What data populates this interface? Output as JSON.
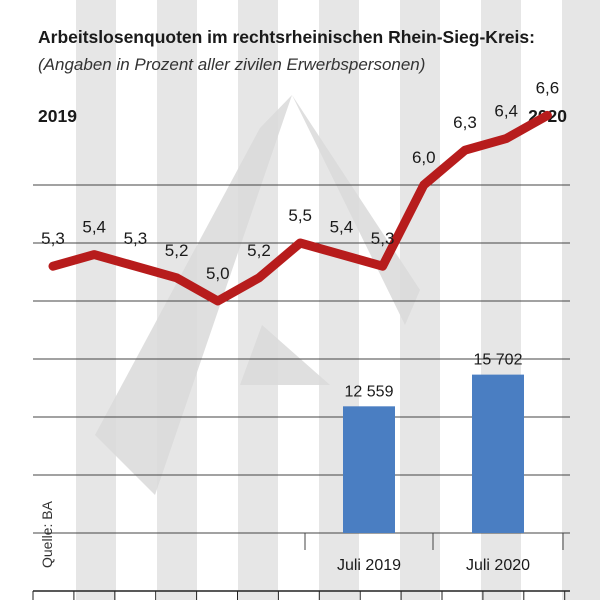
{
  "chart_data": [
    {
      "type": "line",
      "title": "Arbeitslosenquoten im rechtsrheinischen Rhein-Sieg-Kreis:",
      "subtitle": "(Angaben in Prozent aller zivilen Erwerbspersonen)",
      "year_start": "2019",
      "year_end": "2020",
      "source": "Quelle: BA",
      "x": [
        1,
        2,
        3,
        4,
        5,
        6,
        7,
        8,
        9,
        10,
        11,
        12,
        13
      ],
      "values": [
        5.3,
        5.4,
        5.3,
        5.2,
        5.0,
        5.2,
        5.5,
        5.4,
        5.3,
        6.0,
        6.3,
        6.4,
        6.6
      ],
      "value_labels": [
        "5,3",
        "5,4",
        "5,3",
        "5,2",
        "5,0",
        "5,2",
        "5,5",
        "5,4",
        "5,3",
        "6,0",
        "6,3",
        "6,4",
        "6,6"
      ],
      "ylim": [
        3.0,
        8.0
      ],
      "line_color": "#b71c1c"
    },
    {
      "type": "bar",
      "categories": [
        "Juli 2019",
        "Juli 2020"
      ],
      "values": [
        12559,
        15702
      ],
      "value_labels": [
        "12 559",
        "15 702"
      ],
      "ylim": [
        0,
        23000
      ],
      "bar_color": "#4a7ec2"
    }
  ],
  "colors": {
    "stripe": "#e6e6e6",
    "grid": "#444444",
    "watermark": "#d9d9d9"
  }
}
